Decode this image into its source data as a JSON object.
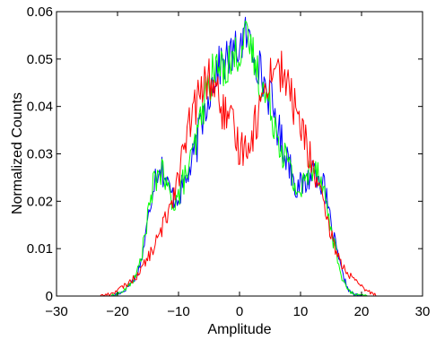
{
  "chart_data": {
    "type": "line",
    "title": "",
    "xlabel": "Amplitude",
    "ylabel": "Normalized Counts",
    "xlim": [
      -30,
      30
    ],
    "ylim": [
      0,
      0.06
    ],
    "x_ticks": [
      -30,
      -20,
      -10,
      0,
      10,
      20,
      30
    ],
    "y_ticks": [
      0,
      0.01,
      0.02,
      0.03,
      0.04,
      0.05,
      0.06
    ],
    "x_tick_labels": [
      "−30",
      "−20",
      "−10",
      "0",
      "10",
      "20",
      "30"
    ],
    "y_tick_labels": [
      "0",
      "0.01",
      "0.02",
      "0.03",
      "0.04",
      "0.05",
      "0.06"
    ],
    "grid": false,
    "box": true,
    "series": [
      {
        "color": "#0000ff",
        "x": [
          -21,
          -19,
          -17,
          -16,
          -15,
          -14,
          -13,
          -12,
          -11,
          -10,
          -9,
          -8,
          -7,
          -6,
          -5,
          -4,
          -3,
          -2,
          -1,
          0,
          1,
          2,
          3,
          4,
          5,
          6,
          7,
          8,
          9,
          10,
          11,
          12,
          13,
          14,
          15,
          16,
          17,
          18,
          19,
          21
        ],
        "y": [
          0,
          0.001,
          0.004,
          0.008,
          0.016,
          0.025,
          0.028,
          0.024,
          0.021,
          0.021,
          0.024,
          0.027,
          0.032,
          0.038,
          0.043,
          0.047,
          0.049,
          0.05,
          0.051,
          0.053,
          0.055,
          0.053,
          0.049,
          0.045,
          0.042,
          0.037,
          0.032,
          0.029,
          0.024,
          0.023,
          0.024,
          0.027,
          0.026,
          0.022,
          0.015,
          0.009,
          0.004,
          0.001,
          0.0002,
          0
        ]
      },
      {
        "color": "#00ff00",
        "x": [
          -21,
          -19,
          -17,
          -16,
          -15,
          -14,
          -13,
          -12,
          -11,
          -10,
          -9,
          -8,
          -7,
          -6,
          -5,
          -4,
          -3,
          -2,
          -1,
          0,
          1,
          2,
          3,
          4,
          5,
          6,
          7,
          8,
          9,
          10,
          11,
          12,
          13,
          14,
          15,
          16,
          17,
          18,
          19,
          21
        ],
        "y": [
          0,
          0.001,
          0.004,
          0.009,
          0.017,
          0.024,
          0.027,
          0.023,
          0.02,
          0.021,
          0.025,
          0.028,
          0.033,
          0.04,
          0.045,
          0.048,
          0.048,
          0.049,
          0.05,
          0.052,
          0.054,
          0.052,
          0.047,
          0.043,
          0.04,
          0.036,
          0.031,
          0.028,
          0.023,
          0.022,
          0.025,
          0.028,
          0.027,
          0.021,
          0.014,
          0.008,
          0.003,
          0.001,
          0.0002,
          0
        ]
      },
      {
        "color": "#ff0000",
        "x": [
          -23,
          -21,
          -19,
          -17,
          -15,
          -13,
          -12,
          -11,
          -10,
          -9,
          -8,
          -7,
          -6,
          -5,
          -4,
          -3,
          -2,
          -1,
          0,
          1,
          2,
          3,
          4,
          5,
          6,
          7,
          8,
          9,
          10,
          11,
          12,
          13,
          14,
          15,
          16,
          17,
          19,
          21,
          23
        ],
        "y": [
          0,
          0.0005,
          0.002,
          0.004,
          0.008,
          0.013,
          0.017,
          0.021,
          0.026,
          0.031,
          0.037,
          0.041,
          0.044,
          0.046,
          0.044,
          0.04,
          0.037,
          0.035,
          0.031,
          0.032,
          0.034,
          0.038,
          0.043,
          0.047,
          0.049,
          0.047,
          0.044,
          0.04,
          0.036,
          0.032,
          0.027,
          0.023,
          0.017,
          0.013,
          0.009,
          0.006,
          0.003,
          0.001,
          0
        ]
      }
    ]
  }
}
